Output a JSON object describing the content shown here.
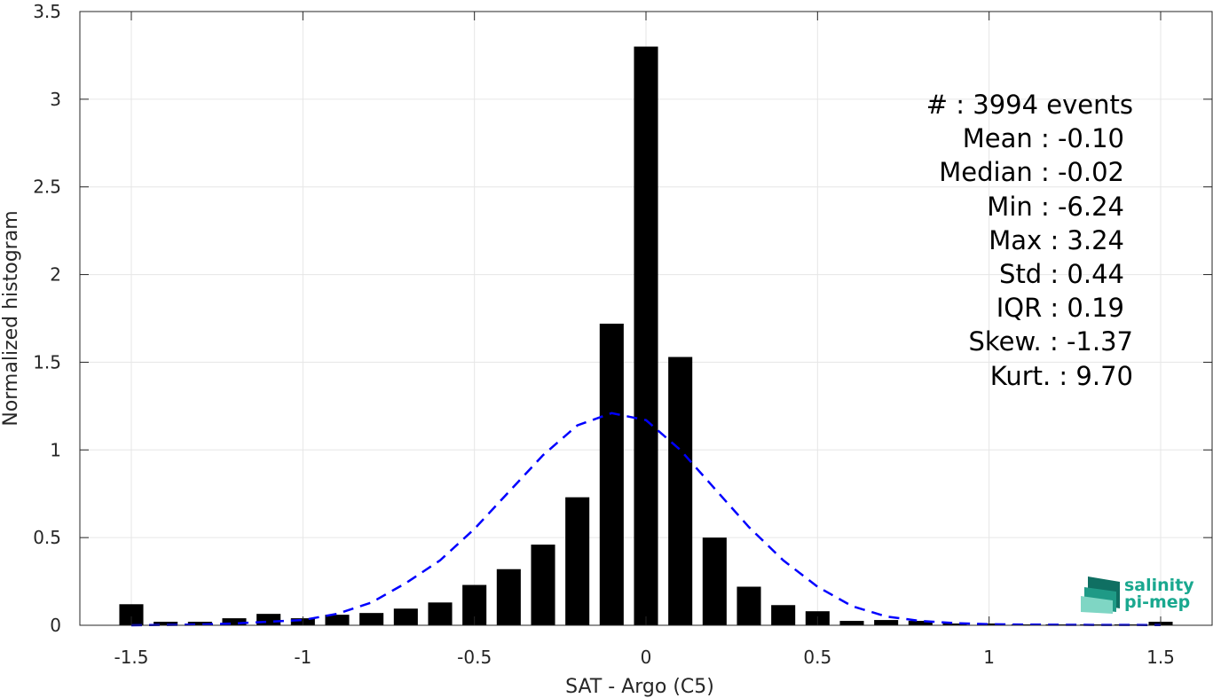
{
  "chart_data": {
    "type": "bar",
    "xlabel": "SAT - Argo (C5)",
    "ylabel": "Normalized histogram",
    "xlim": [
      -1.65,
      1.65
    ],
    "ylim": [
      0,
      3.5
    ],
    "xticks": [
      -1.5,
      -1,
      -0.5,
      0,
      0.5,
      1,
      1.5
    ],
    "xtick_labels": [
      "-1.5",
      "-1",
      "-0.5",
      "0",
      "0.5",
      "1",
      "1.5"
    ],
    "yticks": [
      0,
      0.5,
      1,
      1.5,
      2,
      2.5,
      3,
      3.5
    ],
    "ytick_labels": [
      "0",
      "0.5",
      "1",
      "1.5",
      "2",
      "2.5",
      "3",
      "3.5"
    ],
    "grid": true,
    "bar_width": 0.07,
    "bars": {
      "x": [
        -1.5,
        -1.4,
        -1.3,
        -1.2,
        -1.1,
        -1.0,
        -0.9,
        -0.8,
        -0.7,
        -0.6,
        -0.5,
        -0.4,
        -0.3,
        -0.2,
        -0.1,
        0.0,
        0.1,
        0.2,
        0.3,
        0.4,
        0.5,
        0.6,
        0.7,
        0.8,
        0.9,
        1.0,
        1.1,
        1.2,
        1.3,
        1.4,
        1.5
      ],
      "values": [
        0.12,
        0.02,
        0.02,
        0.04,
        0.065,
        0.04,
        0.06,
        0.07,
        0.095,
        0.13,
        0.23,
        0.32,
        0.46,
        0.73,
        1.72,
        3.3,
        1.53,
        0.5,
        0.22,
        0.115,
        0.08,
        0.025,
        0.03,
        0.025,
        0.01,
        0.01,
        0.005,
        0.005,
        0.005,
        0.005,
        0.02
      ],
      "color": "#000000"
    },
    "fit_curve": {
      "style": "dashed",
      "color": "#0000ff",
      "x": [
        -1.5,
        -1.4,
        -1.3,
        -1.2,
        -1.1,
        -1.0,
        -0.9,
        -0.8,
        -0.7,
        -0.6,
        -0.5,
        -0.4,
        -0.3,
        -0.2,
        -0.1,
        0.0,
        0.1,
        0.2,
        0.3,
        0.4,
        0.5,
        0.6,
        0.7,
        0.8,
        0.9,
        1.0,
        1.1,
        1.2,
        1.3,
        1.4,
        1.5
      ],
      "y": [
        0.0,
        0.002,
        0.004,
        0.01,
        0.02,
        0.03,
        0.065,
        0.13,
        0.24,
        0.37,
        0.55,
        0.76,
        0.97,
        1.14,
        1.21,
        1.17,
        1.0,
        0.78,
        0.56,
        0.37,
        0.22,
        0.11,
        0.05,
        0.025,
        0.012,
        0.006,
        0.004,
        0.003,
        0.002,
        0.002,
        0.001
      ]
    },
    "stats": [
      "#  : 3994 events",
      "Mean : -0.10",
      "Median : -0.02",
      "Min : -6.24",
      "Max : 3.24",
      "Std : 0.44",
      "IQR : 0.19",
      "Skew. : -1.37",
      "Kurt. : 9.70"
    ]
  },
  "logo": {
    "line1": "salinity",
    "line2": "pi-mep",
    "colors": {
      "text": "#1aa88f",
      "dark": "#0f6f62",
      "light": "#7fd6c4"
    }
  },
  "colors": {
    "axis": "#262626",
    "grid": "#e6e6e6",
    "bars": "#000000",
    "fit": "#0000ff"
  }
}
